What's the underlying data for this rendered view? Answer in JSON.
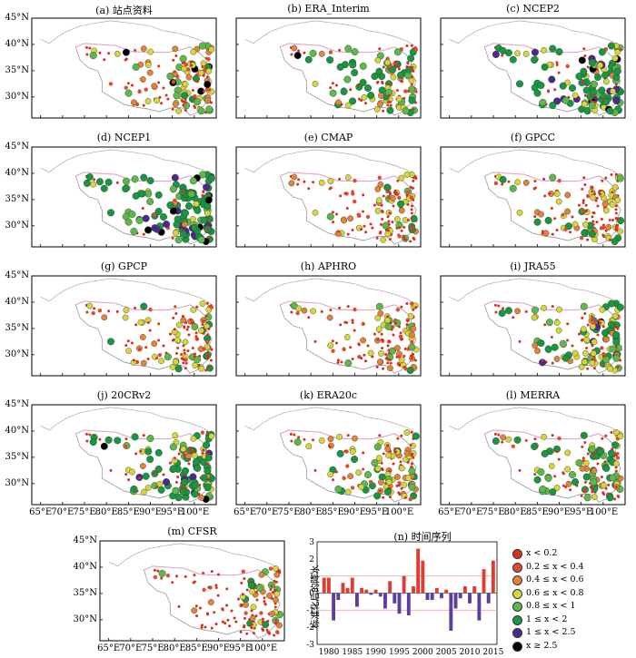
{
  "panels": [
    {
      "key": "a",
      "title": "(a) 站点资料",
      "dist": [
        0.45,
        0.1,
        0.12,
        0.18,
        0.1,
        0.03,
        0.0,
        0.02
      ]
    },
    {
      "key": "b",
      "title": "(b) ERA_Interim",
      "dist": [
        0.42,
        0.05,
        0.06,
        0.14,
        0.1,
        0.2,
        0.0,
        0.03
      ]
    },
    {
      "key": "c",
      "title": "(c) NCEP2",
      "dist": [
        0.2,
        0.03,
        0.03,
        0.14,
        0.1,
        0.35,
        0.11,
        0.04
      ]
    },
    {
      "key": "d",
      "title": "(d) NCEP1",
      "dist": [
        0.15,
        0.02,
        0.03,
        0.1,
        0.1,
        0.45,
        0.1,
        0.05
      ]
    },
    {
      "key": "e",
      "title": "(e) CMAP",
      "dist": [
        0.55,
        0.12,
        0.08,
        0.15,
        0.05,
        0.05,
        0.0,
        0.0
      ]
    },
    {
      "key": "f",
      "title": "(f) GPCC",
      "dist": [
        0.55,
        0.12,
        0.08,
        0.15,
        0.05,
        0.04,
        0.01,
        0.0
      ]
    },
    {
      "key": "g",
      "title": "(g) GPCP",
      "dist": [
        0.5,
        0.12,
        0.1,
        0.18,
        0.05,
        0.05,
        0.0,
        0.0
      ]
    },
    {
      "key": "h",
      "title": "(h) APHRO",
      "dist": [
        0.55,
        0.14,
        0.08,
        0.15,
        0.05,
        0.03,
        0.0,
        0.0
      ]
    },
    {
      "key": "i",
      "title": "(i) JRA55",
      "dist": [
        0.3,
        0.05,
        0.06,
        0.2,
        0.1,
        0.25,
        0.03,
        0.01
      ]
    },
    {
      "key": "j",
      "title": "(j) 20CRv2",
      "dist": [
        0.25,
        0.03,
        0.04,
        0.14,
        0.1,
        0.38,
        0.03,
        0.03
      ]
    },
    {
      "key": "k",
      "title": "(k) ERA20c",
      "dist": [
        0.45,
        0.06,
        0.1,
        0.25,
        0.08,
        0.06,
        0.0,
        0.0
      ]
    },
    {
      "key": "l",
      "title": "(l) MERRA",
      "dist": [
        0.45,
        0.05,
        0.06,
        0.12,
        0.12,
        0.2,
        0.0,
        0.0
      ]
    },
    {
      "key": "m",
      "title": "(m) CFSR",
      "dist": [
        0.75,
        0.06,
        0.06,
        0.06,
        0.04,
        0.03,
        0.0,
        0.0
      ]
    }
  ],
  "lat_labels": [
    "45°N",
    "40°N",
    "35°N",
    "30°N"
  ],
  "lon_labels": [
    "65°E",
    "70°E",
    "75°E",
    "80°E",
    "85°E",
    "90°E",
    "95°E",
    "100°E"
  ],
  "legend": {
    "items": [
      {
        "label": "x < 0.2",
        "color": "#d7301f"
      },
      {
        "label": "0.2 ≤ x < 0.4",
        "color": "#e34a33"
      },
      {
        "label": "0.4 ≤ x < 0.6",
        "color": "#e6813a"
      },
      {
        "label": "0.6 ≤ x < 0.8",
        "color": "#d4d63a"
      },
      {
        "label": "0.8 ≤ x < 1",
        "color": "#5cb84a"
      },
      {
        "label": "1 ≤ x < 2",
        "color": "#1a9641"
      },
      {
        "label": "1 ≤ x < 2.5",
        "color": "#4b2a8c"
      },
      {
        "label": "x ≥ 2.5",
        "color": "#000000"
      }
    ]
  },
  "chart_data": {
    "type": "bar",
    "title": "(n) 时间序列",
    "ylabel": "标准化后的降水",
    "xlabel": "",
    "ylim": [
      -3,
      3
    ],
    "yticks": [
      "3",
      "2",
      "1",
      "0",
      "-1",
      "-2",
      "-3"
    ],
    "xticks": [
      "1980",
      "1985",
      "1990",
      "1995",
      "2000",
      "2005",
      "2010",
      "2015"
    ],
    "x": [
      1979,
      1980,
      1981,
      1982,
      1983,
      1984,
      1985,
      1986,
      1987,
      1988,
      1989,
      1990,
      1991,
      1992,
      1993,
      1994,
      1995,
      1996,
      1997,
      1998,
      1999,
      2000,
      2001,
      2002,
      2003,
      2004,
      2005,
      2006,
      2007,
      2008,
      2009,
      2010,
      2011,
      2012,
      2013,
      2014,
      2015
    ],
    "values": [
      0.9,
      0.9,
      -1.6,
      -0.4,
      0.6,
      0.3,
      0.9,
      -0.8,
      0.3,
      0.2,
      -0.1,
      0.2,
      -0.2,
      -0.9,
      0.7,
      -0.6,
      -1.2,
      1.0,
      -1.3,
      0.4,
      2.6,
      1.9,
      -0.4,
      -0.4,
      0.3,
      -0.3,
      0.2,
      -2.2,
      -0.9,
      -0.3,
      0.4,
      -0.6,
      0.4,
      -1.6,
      1.4,
      -0.6,
      1.9
    ],
    "pos_color": "#e03c31",
    "neg_color": "#5b3f9a"
  }
}
